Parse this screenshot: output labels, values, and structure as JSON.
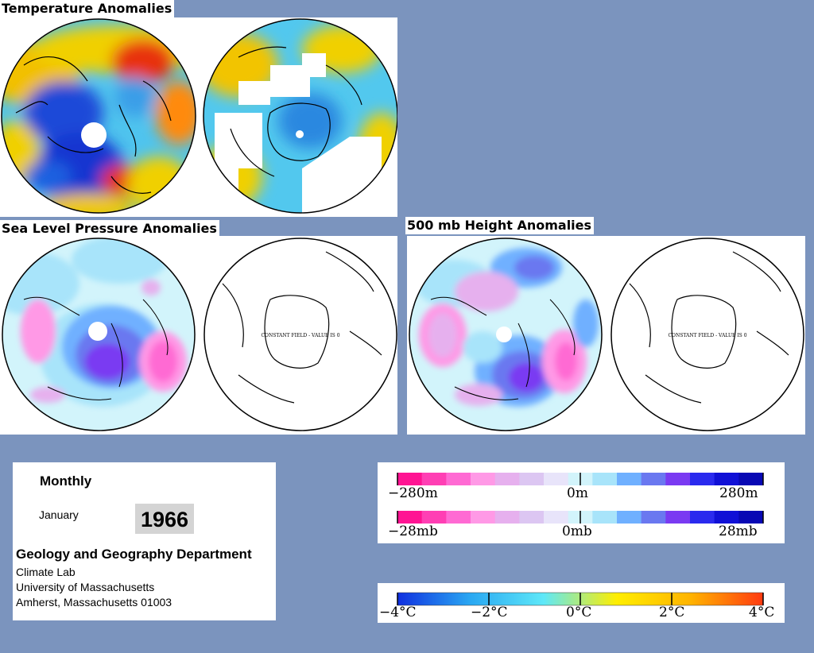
{
  "titles": {
    "temperature": "Temperature Anomalies",
    "slp": "Sea Level Pressure Anomalies",
    "height500": "500 mb Height Anomalies"
  },
  "maps": {
    "constant_field_text": "CONSTANT FIELD - VALUE IS 0"
  },
  "info": {
    "period": "Monthly",
    "month": "January",
    "year": "1966",
    "department": "Geology and Geography Department",
    "lines": [
      "Climate Lab",
      "University of Massachusetts",
      "Amherst, Massachusetts 01003"
    ]
  },
  "legends": {
    "height": {
      "labels": [
        "−280m",
        "0m",
        "280m"
      ],
      "colors": [
        "#ff1493",
        "#ff3fb4",
        "#ff6ad3",
        "#ff99e6",
        "#e6b0ee",
        "#dcc6f2",
        "#e8e4fa",
        "#d2f4fb",
        "#a8e4fa",
        "#6fb0ff",
        "#6a78f0",
        "#7a3af2",
        "#2a2aee",
        "#1010d6",
        "#0808b4"
      ]
    },
    "pressure": {
      "labels": [
        "−28mb",
        "0mb",
        "28mb"
      ],
      "colors": [
        "#ff1493",
        "#ff3fb4",
        "#ff6ad3",
        "#ff99e6",
        "#e6b0ee",
        "#dcc6f2",
        "#e8e4fa",
        "#d2f4fb",
        "#a8e4fa",
        "#6fb0ff",
        "#6a78f0",
        "#7a3af2",
        "#2a2aee",
        "#1010d6",
        "#0808b4"
      ]
    },
    "temperature": {
      "labels": [
        "−4°C",
        "−2°C",
        "0°C",
        "2°C",
        "4°C"
      ],
      "stops": [
        "#1030e0",
        "#2aa8f2",
        "#5ee8f8",
        "#ffee00",
        "#ffb400",
        "#ff3a10"
      ]
    }
  }
}
